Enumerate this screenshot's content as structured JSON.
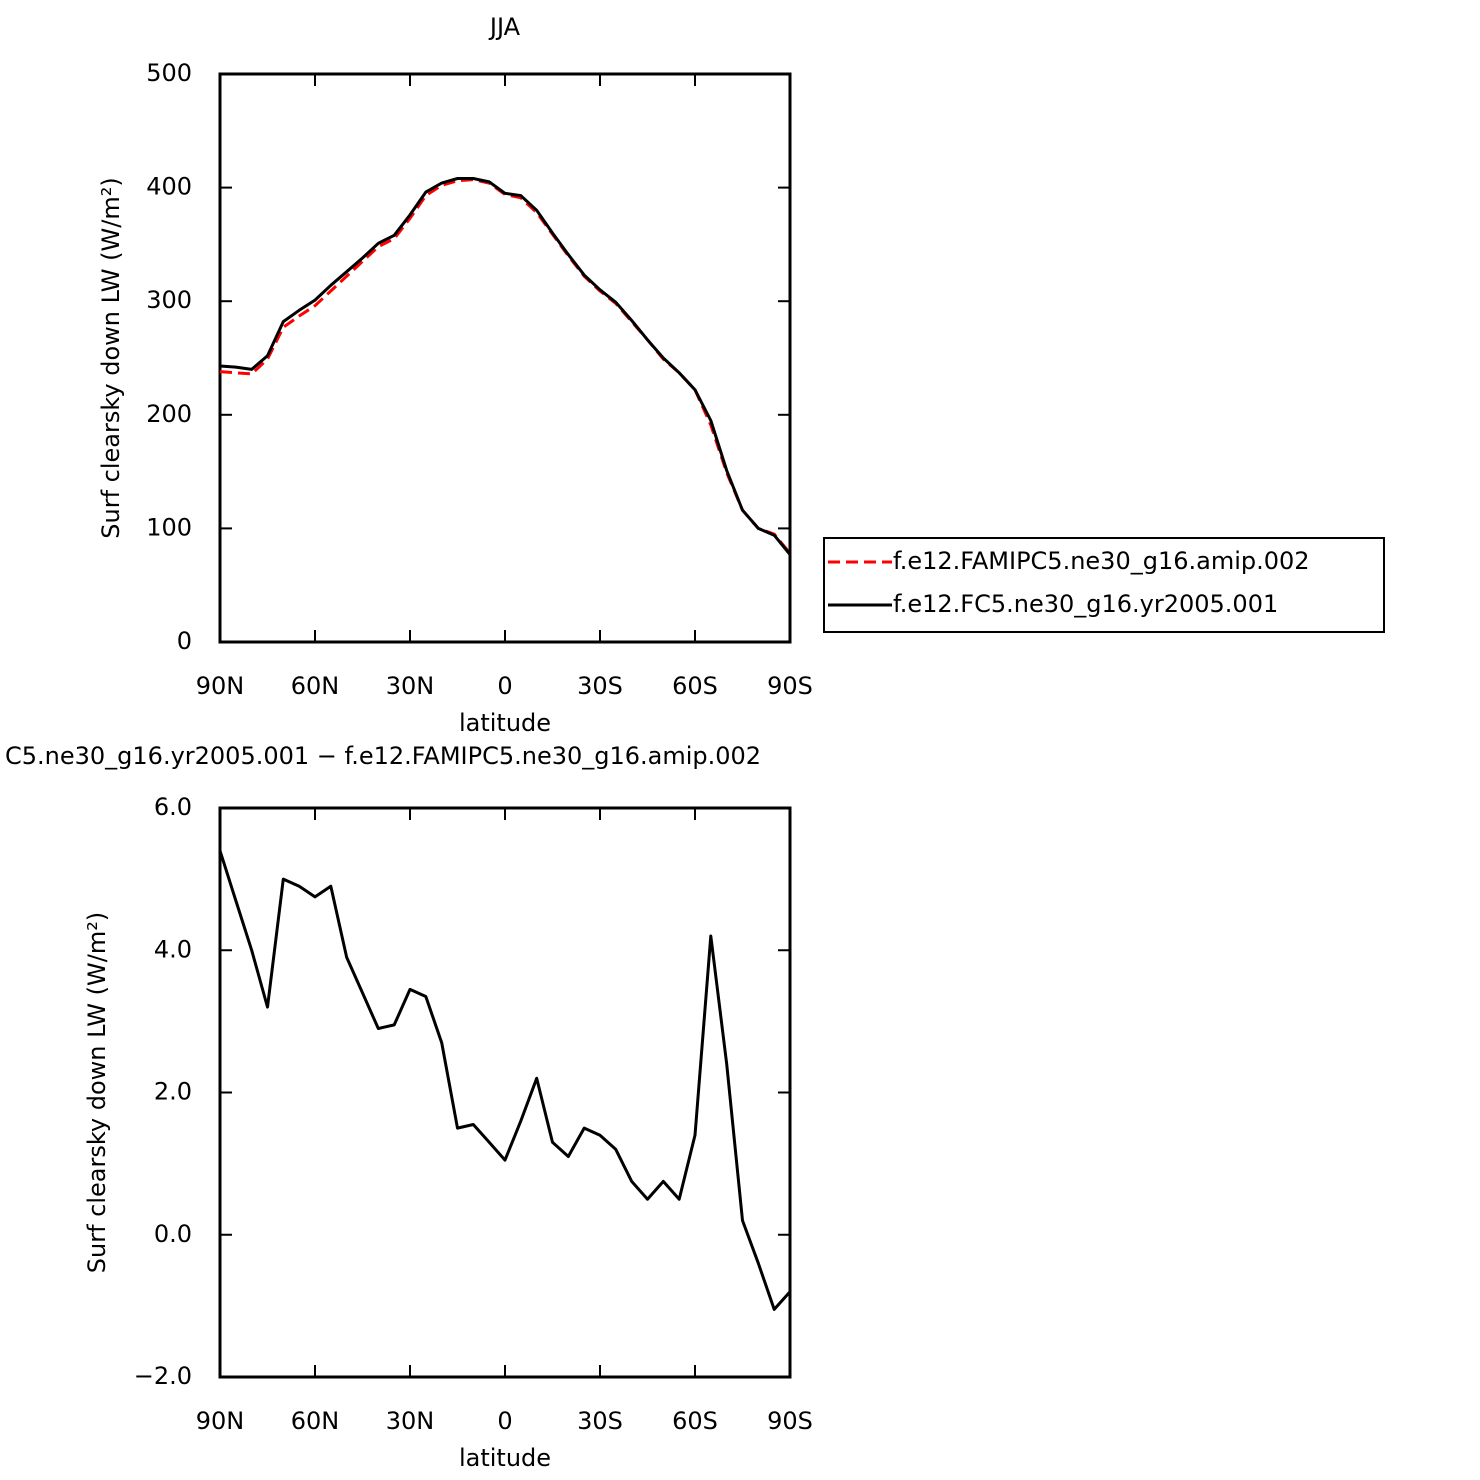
{
  "chart_data": [
    {
      "type": "line",
      "title": "JJA",
      "x_label": "latitude",
      "y_label": "Surf clearsky down LW (W/m²)",
      "x": [
        90,
        85,
        80,
        75,
        70,
        65,
        60,
        55,
        50,
        45,
        40,
        35,
        30,
        25,
        20,
        15,
        10,
        5,
        0,
        -5,
        -10,
        -15,
        -20,
        -25,
        -30,
        -35,
        -40,
        -45,
        -50,
        -55,
        -60,
        -65,
        -70,
        -75,
        -80,
        -85,
        -90
      ],
      "xlim": [
        90,
        -90
      ],
      "xticks": [
        {
          "value": 90,
          "label": "90N"
        },
        {
          "value": 60,
          "label": "60N"
        },
        {
          "value": 30,
          "label": "30N"
        },
        0,
        {
          "value": -30,
          "label": "30S"
        },
        {
          "value": -60,
          "label": "60S"
        },
        {
          "value": -90,
          "label": "90S"
        }
      ],
      "ylim": [
        0,
        500
      ],
      "yticks": [
        0,
        100,
        200,
        300,
        400,
        500
      ],
      "legend": "right",
      "series": [
        {
          "name": "f.e12.FAMIPC5.ne30_g16.amip.002",
          "color": "#ff0000",
          "dash": "dashed",
          "values": [
            238,
            237,
            236,
            249,
            277,
            287,
            296,
            309,
            322,
            335,
            348,
            355,
            373,
            393,
            402,
            406,
            407,
            404,
            394,
            391,
            378,
            359,
            340,
            322,
            309,
            298,
            282,
            266,
            249,
            237,
            222,
            191,
            149,
            116,
            100,
            95,
            78
          ]
        },
        {
          "name": "f.e12.FC5.ne30_g16.yr2005.001",
          "color": "#000000",
          "values": [
            243,
            242,
            240,
            252,
            282,
            292,
            301,
            314,
            326,
            338,
            351,
            358,
            376,
            396,
            404,
            408,
            408,
            405,
            395,
            393,
            380,
            360,
            341,
            323,
            310,
            299,
            283,
            266,
            250,
            237,
            222,
            195,
            151,
            116,
            100,
            94,
            77
          ]
        }
      ]
    },
    {
      "type": "line",
      "title": "C5.ne30_g16.yr2005.001 − f.e12.FAMIPC5.ne30_g16.amip.002",
      "x_label": "latitude",
      "y_label": "Surf clearsky down LW (W/m²)",
      "x": [
        90,
        85,
        80,
        75,
        70,
        65,
        60,
        55,
        50,
        45,
        40,
        35,
        30,
        25,
        20,
        15,
        10,
        5,
        0,
        -5,
        -10,
        -15,
        -20,
        -25,
        -30,
        -35,
        -40,
        -45,
        -50,
        -55,
        -60,
        -65,
        -70,
        -75,
        -80,
        -85,
        -90
      ],
      "xlim": [
        90,
        -90
      ],
      "xticks": [
        {
          "value": 90,
          "label": "90N"
        },
        {
          "value": 60,
          "label": "60N"
        },
        {
          "value": 30,
          "label": "30N"
        },
        0,
        {
          "value": -30,
          "label": "30S"
        },
        {
          "value": -60,
          "label": "60S"
        },
        {
          "value": -90,
          "label": "90S"
        }
      ],
      "ylim": [
        -2,
        6
      ],
      "yticks": [
        {
          "value": -2,
          "label": "−2.0"
        },
        {
          "value": 0,
          "label": "0.0"
        },
        {
          "value": 2,
          "label": "2.0"
        },
        {
          "value": 4,
          "label": "4.0"
        },
        {
          "value": 6,
          "label": "6.0"
        }
      ],
      "series": [
        {
          "color": "#000000",
          "values": [
            5.4,
            4.7,
            4.0,
            3.2,
            5.0,
            4.9,
            4.75,
            4.9,
            3.9,
            3.4,
            2.9,
            2.95,
            3.45,
            3.35,
            2.7,
            1.5,
            1.55,
            1.3,
            1.05,
            1.6,
            2.2,
            1.3,
            1.1,
            1.5,
            1.4,
            1.2,
            0.75,
            0.5,
            0.75,
            0.5,
            1.4,
            4.2,
            2.4,
            0.2,
            -0.4,
            -1.05,
            -0.8
          ]
        }
      ]
    }
  ]
}
